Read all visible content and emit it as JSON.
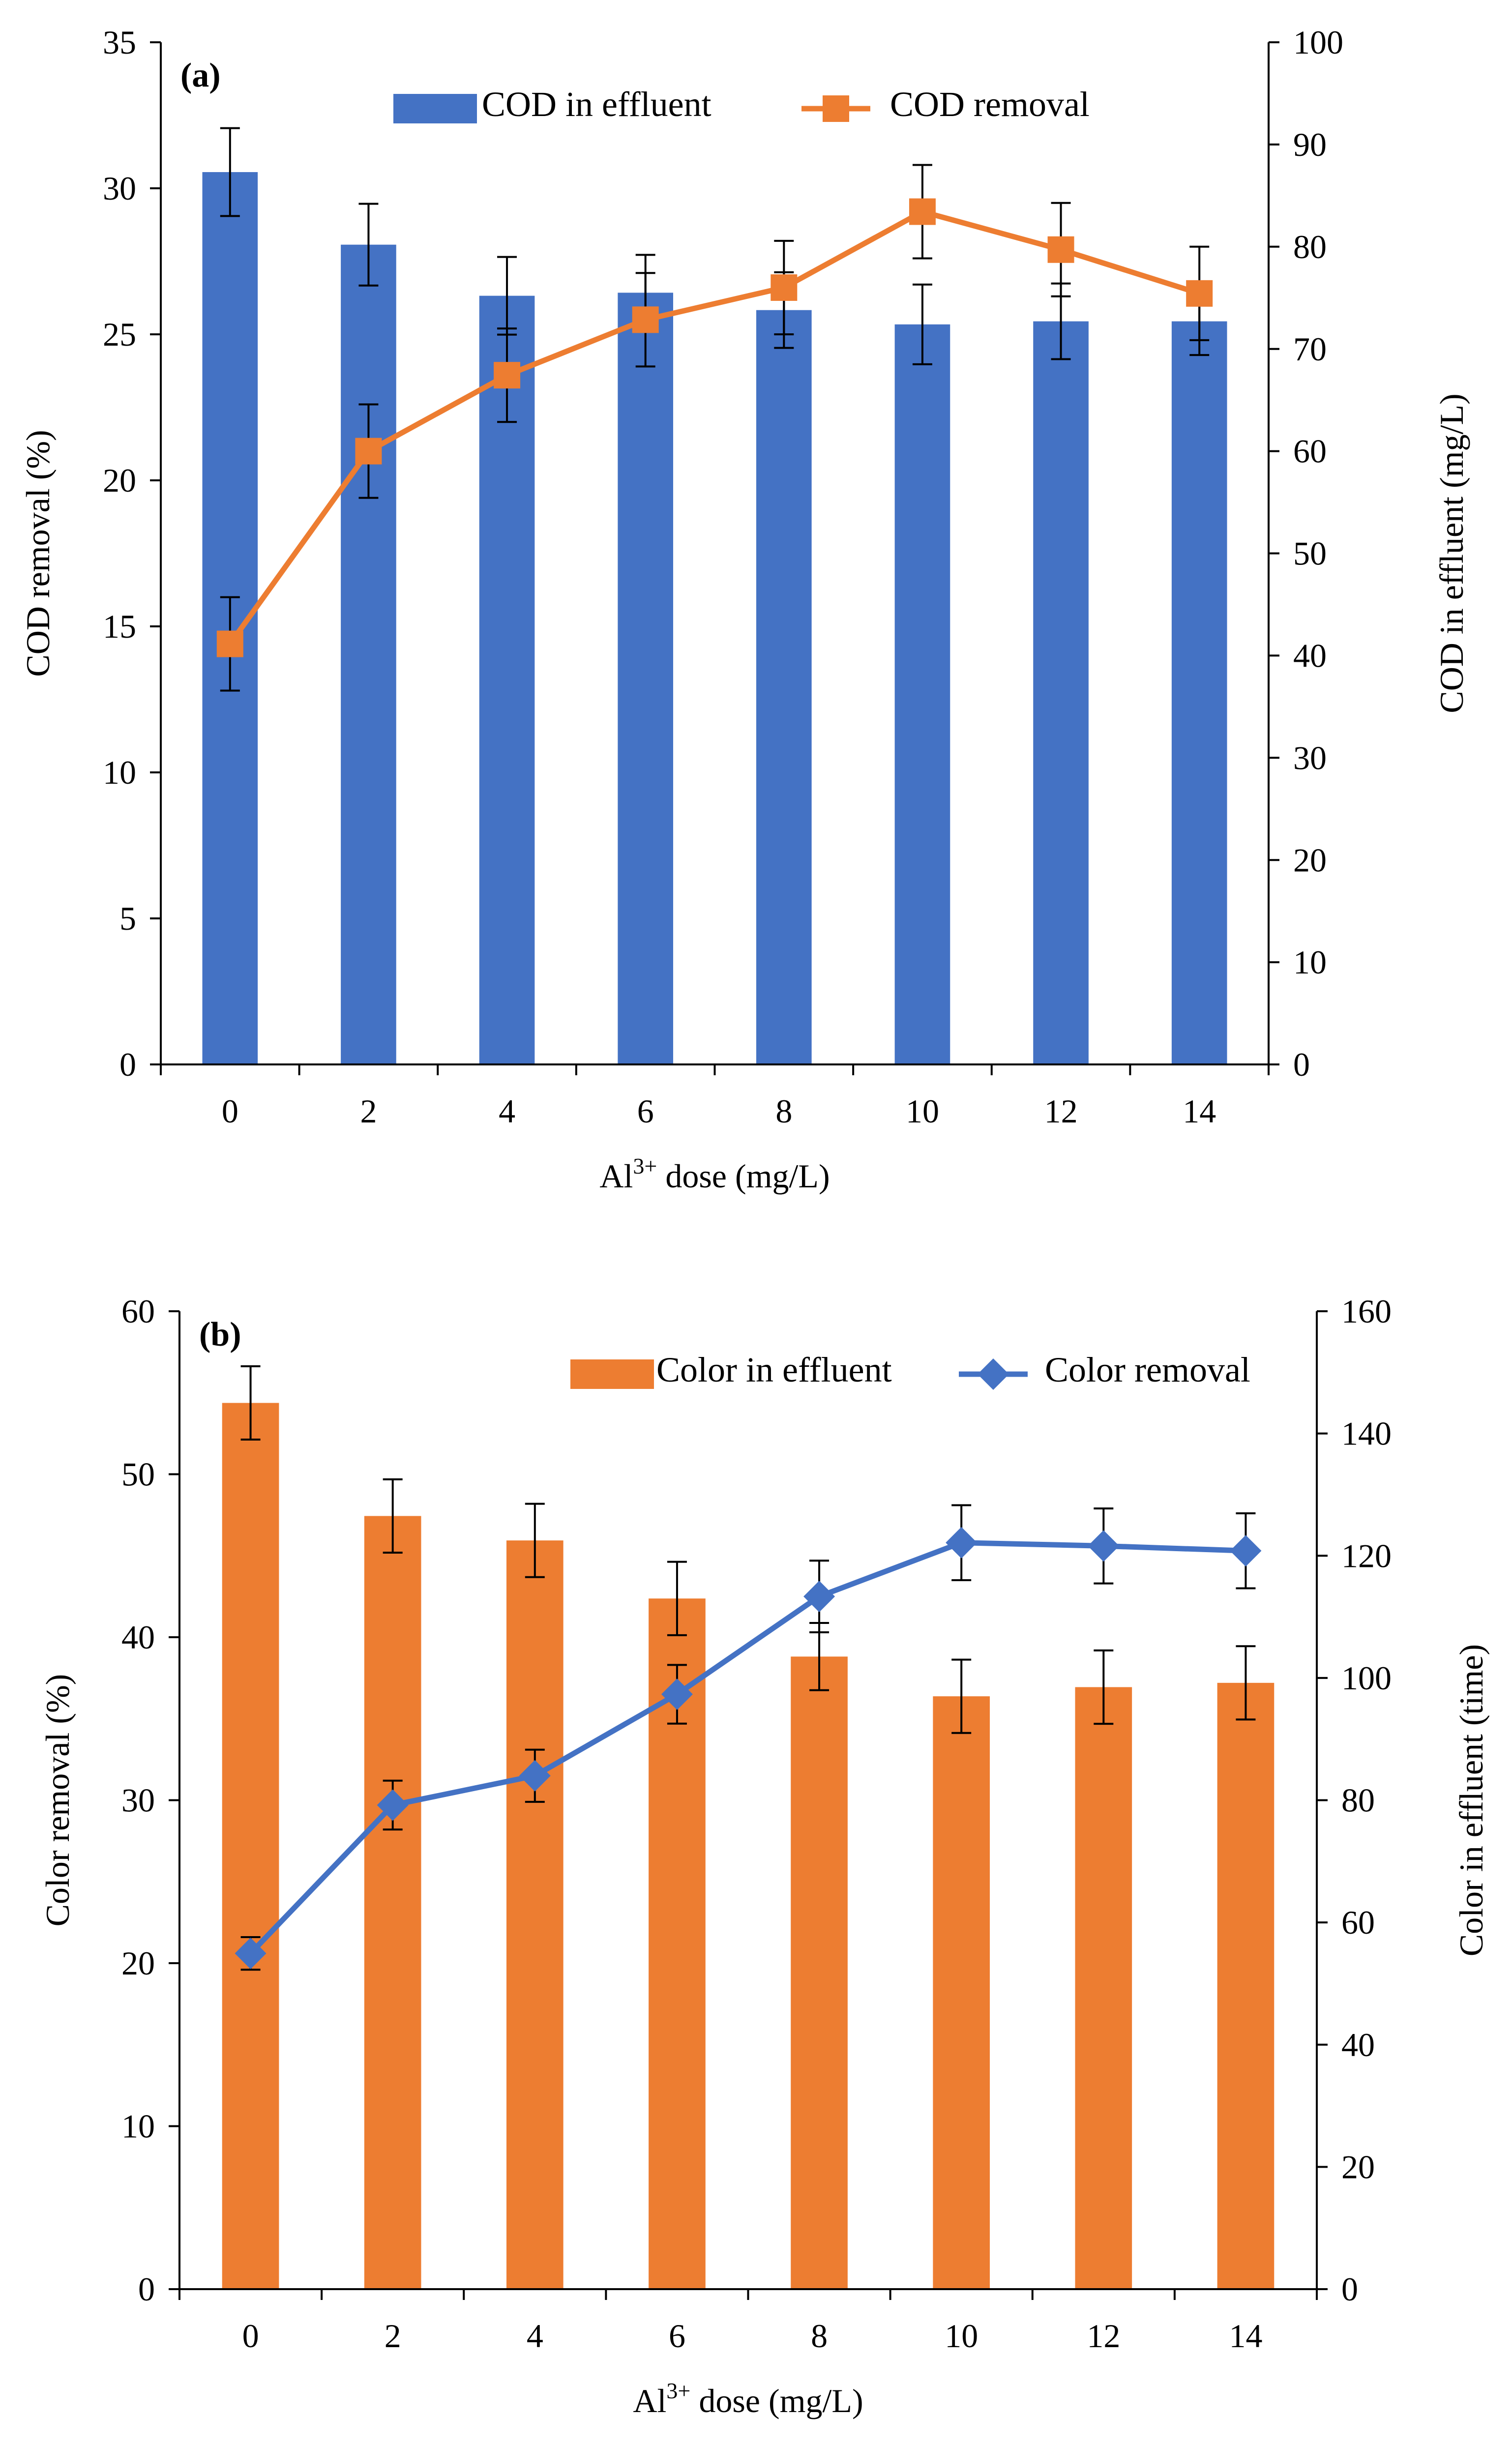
{
  "chart_data": [
    {
      "type": "bar",
      "panel_label": "(a)",
      "categories": [
        "0",
        "2",
        "4",
        "6",
        "8",
        "10",
        "12",
        "14"
      ],
      "x": [
        0,
        2,
        4,
        6,
        8,
        10,
        12,
        14
      ],
      "xlabel": {
        "base": "Al",
        "sup": "3+",
        "rest": " dose (mg/L)"
      },
      "ylabel": "COD removal (%)",
      "y2label": "COD in effluent (mg/L)",
      "ylim": [
        0,
        35
      ],
      "y2lim": [
        0,
        100
      ],
      "yticks": [
        0,
        5,
        10,
        15,
        20,
        25,
        30,
        35
      ],
      "y2ticks": [
        0,
        10,
        20,
        30,
        40,
        50,
        60,
        70,
        80,
        90,
        100
      ],
      "legend_position": "top",
      "series": [
        {
          "name": "COD in effluent",
          "type": "bar",
          "axis": "right",
          "color": "#4472C4",
          "values": [
            87.3,
            80.2,
            75.2,
            75.5,
            73.8,
            72.4,
            72.7,
            72.7
          ],
          "errors": [
            4.3,
            4.0,
            3.8,
            3.7,
            3.7,
            3.9,
            3.7,
            3.3
          ]
        },
        {
          "name": "COD removal",
          "type": "line",
          "axis": "left",
          "marker": "square",
          "color": "#ED7D31",
          "values": [
            14.4,
            21.0,
            23.6,
            25.5,
            26.6,
            29.2,
            27.9,
            26.4
          ],
          "errors": [
            1.6,
            1.6,
            1.6,
            1.6,
            1.6,
            1.6,
            1.6,
            1.6
          ]
        }
      ]
    },
    {
      "type": "bar",
      "panel_label": "(b)",
      "categories": [
        "0",
        "2",
        "4",
        "6",
        "8",
        "10",
        "12",
        "14"
      ],
      "x": [
        0,
        2,
        4,
        6,
        8,
        10,
        12,
        14
      ],
      "xlabel": {
        "base": "Al",
        "sup": "3+",
        "rest": " dose (mg/L)"
      },
      "ylabel": "Color removal (%)",
      "y2label": "Color in effluent (time)",
      "ylim": [
        0,
        60
      ],
      "y2lim": [
        0,
        160
      ],
      "yticks": [
        0,
        10,
        20,
        30,
        40,
        50,
        60
      ],
      "y2ticks": [
        0,
        20,
        40,
        60,
        80,
        100,
        120,
        140,
        160
      ],
      "legend_position": "top-right",
      "series": [
        {
          "name": "Color in effluent",
          "type": "bar",
          "axis": "right",
          "color": "#ED7D31",
          "values": [
            145,
            126.5,
            122.5,
            113,
            103.5,
            97,
            98.5,
            99.2
          ],
          "errors": [
            6,
            6,
            6,
            6,
            5.5,
            6,
            6,
            6
          ]
        },
        {
          "name": "Color removal",
          "type": "line",
          "axis": "left",
          "marker": "diamond",
          "color": "#4472C4",
          "values": [
            20.6,
            29.7,
            31.5,
            36.5,
            42.5,
            45.8,
            45.6,
            45.3
          ],
          "errors": [
            1.0,
            1.5,
            1.6,
            1.8,
            2.2,
            2.3,
            2.3,
            2.3
          ]
        }
      ]
    }
  ]
}
